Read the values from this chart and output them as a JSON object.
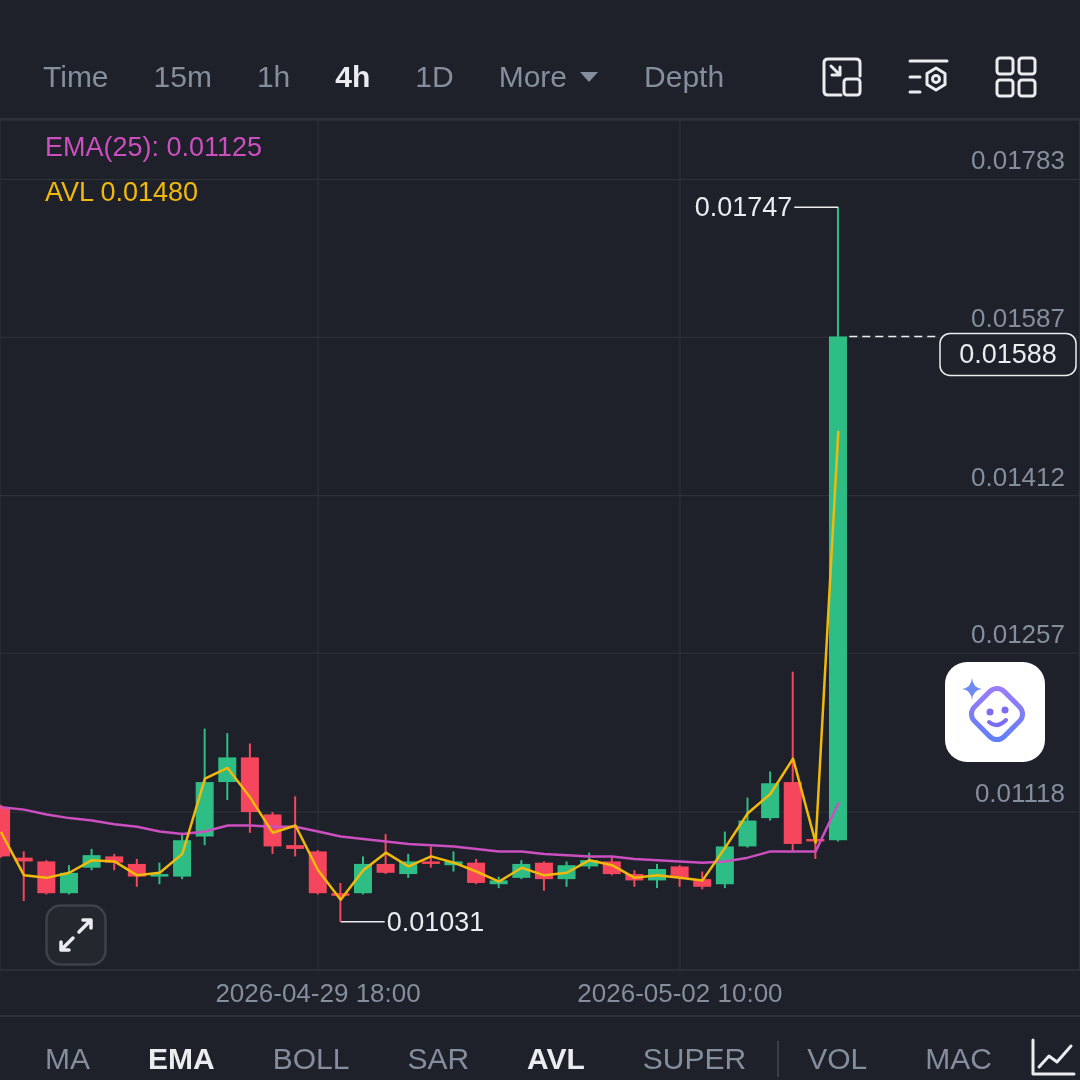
{
  "chart_data": [
    {
      "type": "other",
      "annotations": [
        "Time",
        "15m",
        "1h",
        "4h",
        "1D",
        "More",
        "Depth"
      ],
      "colors": [
        "#848e9c",
        "#848e9c",
        "#848e9c",
        "#eaecef",
        "#848e9c",
        "#848e9c",
        "#848e9c"
      ]
    },
    {
      "type": "candlestick",
      "x": [
        "2026-04-27T10:00",
        "2026-04-27T14:00",
        "2026-04-27T18:00",
        "2026-04-27T22:00",
        "2026-04-28T02:00",
        "2026-04-28T06:00",
        "2026-04-28T10:00",
        "2026-04-28T14:00",
        "2026-04-28T18:00",
        "2026-04-28T22:00",
        "2026-04-29T02:00",
        "2026-04-29T06:00",
        "2026-04-29T10:00",
        "2026-04-29T14:00",
        "2026-04-29T18:00",
        "2026-04-29T22:00",
        "2026-04-30T02:00",
        "2026-04-30T06:00",
        "2026-04-30T10:00",
        "2026-04-30T14:00",
        "2026-04-30T18:00",
        "2026-04-30T22:00",
        "2026-05-01T02:00",
        "2026-05-01T06:00",
        "2026-05-01T10:00",
        "2026-05-01T14:00",
        "2026-05-01T18:00",
        "2026-05-01T22:00",
        "2026-05-02T02:00",
        "2026-05-02T06:00",
        "2026-05-02T10:00",
        "2026-05-02T14:00",
        "2026-05-02T18:00",
        "2026-05-02T22:00",
        "2026-05-03T02:00",
        "2026-05-03T06:00",
        "2026-05-03T10:00",
        "2026-05-03T14:00"
      ],
      "ohlc": [
        [
          0.01122,
          0.01124,
          0.01081,
          0.01082
        ],
        [
          0.01081,
          0.01086,
          0.01047,
          0.01078
        ],
        [
          0.01078,
          0.01079,
          0.01052,
          0.01053
        ],
        [
          0.01053,
          0.01075,
          0.01052,
          0.01069
        ],
        [
          0.01073,
          0.01088,
          0.01071,
          0.01083
        ],
        [
          0.01082,
          0.01084,
          0.01071,
          0.01077
        ],
        [
          0.01076,
          0.0108,
          0.01058,
          0.01066
        ],
        [
          0.01066,
          0.01077,
          0.0106,
          0.01068
        ],
        [
          0.01066,
          0.01101,
          0.01064,
          0.01095
        ],
        [
          0.01098,
          0.01189,
          0.01091,
          0.01143
        ],
        [
          0.01143,
          0.01185,
          0.01128,
          0.01164
        ],
        [
          0.01164,
          0.01176,
          0.01101,
          0.01118
        ],
        [
          0.01116,
          0.01118,
          0.01084,
          0.0109
        ],
        [
          0.01091,
          0.01131,
          0.01082,
          0.01088
        ],
        [
          0.01086,
          0.01087,
          0.01052,
          0.01053
        ],
        [
          0.01053,
          0.01061,
          0.01031,
          0.01051
        ],
        [
          0.01053,
          0.01082,
          0.01052,
          0.01076
        ],
        [
          0.01076,
          0.011,
          0.01068,
          0.01069
        ],
        [
          0.01068,
          0.01084,
          0.01065,
          0.01078
        ],
        [
          0.01078,
          0.0109,
          0.01073,
          0.01076
        ],
        [
          0.01075,
          0.01086,
          0.0107,
          0.01078
        ],
        [
          0.01077,
          0.0108,
          0.0106,
          0.01061
        ],
        [
          0.0106,
          0.01066,
          0.01057,
          0.01063
        ],
        [
          0.01065,
          0.01079,
          0.01064,
          0.01076
        ],
        [
          0.01077,
          0.01078,
          0.01055,
          0.01064
        ],
        [
          0.01064,
          0.01078,
          0.01058,
          0.01075
        ],
        [
          0.01074,
          0.01085,
          0.01072,
          0.01079
        ],
        [
          0.01078,
          0.01082,
          0.01067,
          0.01068
        ],
        [
          0.01068,
          0.01071,
          0.01058,
          0.01063
        ],
        [
          0.01063,
          0.01076,
          0.01057,
          0.01072
        ],
        [
          0.01074,
          0.01075,
          0.01058,
          0.01065
        ],
        [
          0.01064,
          0.0107,
          0.01056,
          0.01058
        ],
        [
          0.0106,
          0.01102,
          0.01057,
          0.0109
        ],
        [
          0.0109,
          0.0113,
          0.01089,
          0.01111
        ],
        [
          0.01113,
          0.01152,
          0.01111,
          0.01142
        ],
        [
          0.01143,
          0.0124,
          0.01086,
          0.01092
        ],
        [
          0.01096,
          0.01096,
          0.0108,
          0.01094
        ],
        [
          0.01095,
          0.01747,
          0.01094,
          0.01588
        ]
      ],
      "colors": [
        "#f6465d",
        "#f6465d",
        "#f6465d",
        "#2ebd85",
        "#2ebd85",
        "#f6465d",
        "#f6465d",
        "#2ebd85",
        "#2ebd85",
        "#2ebd85",
        "#2ebd85",
        "#f6465d",
        "#f6465d",
        "#f6465d",
        "#f6465d",
        "#f6465d",
        "#2ebd85",
        "#f6465d",
        "#2ebd85",
        "#f6465d",
        "#2ebd85",
        "#f6465d",
        "#2ebd85",
        "#2ebd85",
        "#f6465d",
        "#2ebd85",
        "#2ebd85",
        "#f6465d",
        "#f6465d",
        "#2ebd85",
        "#f6465d",
        "#f6465d",
        "#2ebd85",
        "#2ebd85",
        "#2ebd85",
        "#f6465d",
        "#f6465d",
        "#2ebd85"
      ],
      "series": [
        {
          "name": "EMA(25): 0.01125",
          "type": "line",
          "color": "#cc4fc0",
          "values": [
            0.01122,
            0.0112,
            0.01116,
            0.01113,
            0.01111,
            0.01108,
            0.01106,
            0.01102,
            0.011,
            0.01102,
            0.01107,
            0.01107,
            0.01106,
            0.01106,
            0.01102,
            0.01098,
            0.01096,
            0.01094,
            0.01092,
            0.01091,
            0.0109,
            0.01088,
            0.01086,
            0.01086,
            0.01084,
            0.01083,
            0.01082,
            0.01082,
            0.0108,
            0.01079,
            0.01078,
            0.01077,
            0.01078,
            0.01081,
            0.01086,
            0.01086,
            0.01086,
            0.01125
          ]
        },
        {
          "name": "AVL 0.01480",
          "type": "line",
          "color": "#f0b90b",
          "values": [
            0.01101,
            0.01067,
            0.01065,
            0.01069,
            0.01079,
            0.01078,
            0.01067,
            0.01069,
            0.01084,
            0.01146,
            0.01155,
            0.0113,
            0.01101,
            0.01107,
            0.01071,
            0.01048,
            0.01071,
            0.01085,
            0.01074,
            0.01082,
            0.01077,
            0.0107,
            0.01062,
            0.01073,
            0.01067,
            0.01069,
            0.01079,
            0.01075,
            0.01065,
            0.01067,
            0.01065,
            0.01063,
            0.01089,
            0.01117,
            0.01133,
            0.01163,
            0.01093,
            0.0148
          ]
        }
      ],
      "xlim": [
        "2026-04-27T09:45",
        "2026-05-05T08:45"
      ],
      "xticks": [
        {
          "value": "2026-04-29T18:00",
          "label": "2026-04-29 18:00"
        },
        {
          "value": "2026-05-02T10:00",
          "label": "2026-05-02 10:00"
        }
      ],
      "ylim": [
        0.00995,
        0.01863
      ],
      "yticks": [
        0.01118,
        0.01257,
        0.01412,
        0.01587,
        0.01783
      ],
      "log": true,
      "grid": true,
      "legend": "top left",
      "annotations": [
        {
          "text": "0.01747",
          "x": "2026-05-03T14:00",
          "y": 0.01747
        },
        {
          "text": "0.01031",
          "x": "2026-04-29T22:00",
          "y": 0.01031
        }
      ],
      "ref_lines": [
        {
          "axis": "y",
          "value": 0.01588,
          "label": "0.01588",
          "line_style": "dashed",
          "color": "#eaecef"
        }
      ]
    },
    {
      "type": "other",
      "annotations": [
        "MA",
        "EMA",
        "BOLL",
        "SAR",
        "AVL",
        "SUPER",
        "VOL",
        "MAC"
      ],
      "colors": [
        "#848e9c",
        "#eaecef",
        "#848e9c",
        "#848e9c",
        "#eaecef",
        "#848e9c",
        "#848e9c",
        "#848e9c"
      ]
    }
  ]
}
